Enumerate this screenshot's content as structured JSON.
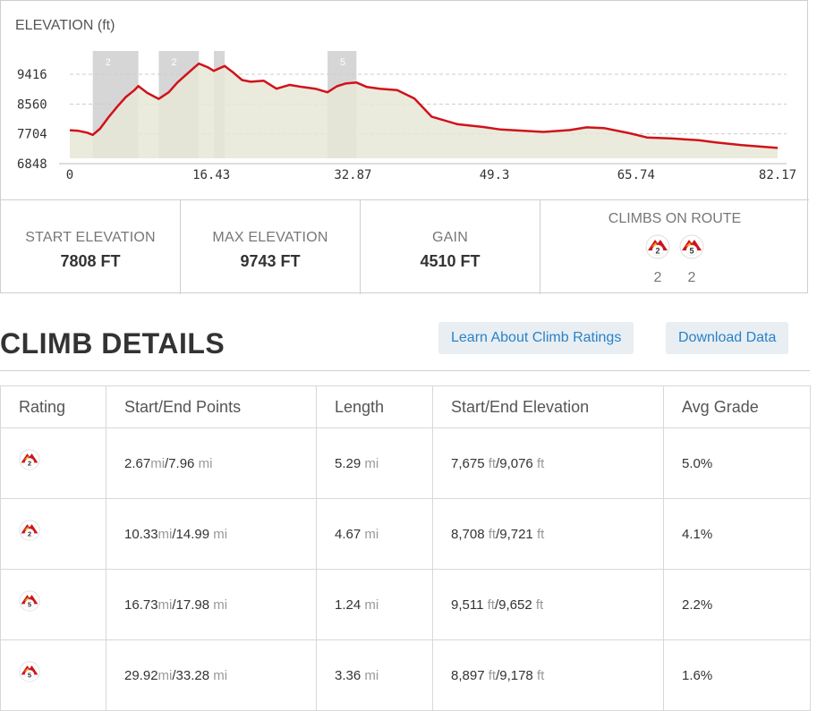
{
  "elevation_chart": {
    "title": "ELEVATION (ft)",
    "y_ticks": [
      "9416",
      "8560",
      "7704",
      "6848"
    ],
    "x_ticks": [
      "0",
      "16.43",
      "32.87",
      "49.3",
      "65.74",
      "82.17"
    ],
    "climb_band_labels": [
      "2",
      "2",
      "",
      "5"
    ],
    "colors": {
      "line": "#d0121b",
      "fill": "#e6e8d6",
      "band": "#c8c8c8",
      "grid": "#cccccc"
    }
  },
  "chart_data": {
    "type": "area",
    "title": "ELEVATION (ft)",
    "xlabel": "",
    "ylabel": "ELEVATION (ft)",
    "xlim": [
      0,
      82.17
    ],
    "ylim": [
      6848,
      9743
    ],
    "grid": true,
    "x": [
      0,
      1,
      2,
      2.67,
      3.5,
      4.5,
      5.5,
      6.5,
      7.5,
      7.96,
      9,
      10.33,
      11.5,
      12.5,
      13.5,
      14.5,
      14.99,
      16,
      16.73,
      17.5,
      17.98,
      19,
      20,
      21,
      22.5,
      24,
      25.5,
      27,
      28.5,
      29.92,
      31,
      32,
      33.28,
      34.5,
      36,
      38,
      40,
      42,
      45,
      48,
      50,
      52,
      55,
      58,
      60,
      62,
      65,
      67,
      70,
      73,
      75,
      78,
      80,
      82.17
    ],
    "series": [
      {
        "name": "",
        "values": [
          7808,
          7790,
          7740,
          7675,
          7850,
          8180,
          8480,
          8760,
          8960,
          9076,
          8880,
          8708,
          8900,
          9180,
          9400,
          9620,
          9721,
          9620,
          9511,
          9600,
          9652,
          9460,
          9250,
          9200,
          9230,
          9000,
          9110,
          9050,
          9000,
          8897,
          9070,
          9150,
          9178,
          9050,
          9000,
          8960,
          8720,
          8200,
          7980,
          7900,
          7830,
          7800,
          7760,
          7810,
          7890,
          7870,
          7720,
          7600,
          7570,
          7520,
          7460,
          7380,
          7340,
          7300
        ]
      }
    ],
    "climb_ranges": [
      {
        "rating": "2",
        "start": 2.67,
        "end": 7.96
      },
      {
        "rating": "2",
        "start": 10.33,
        "end": 14.99
      },
      {
        "rating": "5",
        "start": 16.73,
        "end": 17.98
      },
      {
        "rating": "5",
        "start": 29.92,
        "end": 33.28
      }
    ]
  },
  "stats": {
    "start_elevation": {
      "label": "START ELEVATION",
      "value": "7808 FT"
    },
    "max_elevation": {
      "label": "MAX ELEVATION",
      "value": "9743 FT"
    },
    "gain": {
      "label": "GAIN",
      "value": "4510 FT"
    },
    "climbs_on_route": {
      "label": "CLIMBS ON ROUTE",
      "icons": [
        "2",
        "5"
      ],
      "counts": [
        "2",
        "2"
      ]
    }
  },
  "climb_details": {
    "title": "CLIMB DETAILS",
    "learn_button": "Learn About Climb Ratings",
    "download_button": "Download Data",
    "columns": [
      "Rating",
      "Start/End Points",
      "Length",
      "Start/End Elevation",
      "Avg Grade"
    ],
    "rows": [
      {
        "rating": "2",
        "start": "2.67",
        "start_unit": "mi",
        "end": "7.96",
        "end_unit": "mi",
        "length": "5.29",
        "length_unit": "mi",
        "start_elev": "7,675",
        "start_elev_unit": "ft",
        "end_elev": "9,076",
        "end_elev_unit": "ft",
        "grade": "5.0%"
      },
      {
        "rating": "2",
        "start": "10.33",
        "start_unit": "mi",
        "end": "14.99",
        "end_unit": "mi",
        "length": "4.67",
        "length_unit": "mi",
        "start_elev": "8,708",
        "start_elev_unit": "ft",
        "end_elev": "9,721",
        "end_elev_unit": "ft",
        "grade": "4.1%"
      },
      {
        "rating": "5",
        "start": "16.73",
        "start_unit": "mi",
        "end": "17.98",
        "end_unit": "mi",
        "length": "1.24",
        "length_unit": "mi",
        "start_elev": "9,511",
        "start_elev_unit": "ft",
        "end_elev": "9,652",
        "end_elev_unit": "ft",
        "grade": "2.2%"
      },
      {
        "rating": "5",
        "start": "29.92",
        "start_unit": "mi",
        "end": "33.28",
        "end_unit": "mi",
        "length": "3.36",
        "length_unit": "mi",
        "start_elev": "8,897",
        "start_elev_unit": "ft",
        "end_elev": "9,178",
        "end_elev_unit": "ft",
        "grade": "1.6%"
      }
    ]
  }
}
